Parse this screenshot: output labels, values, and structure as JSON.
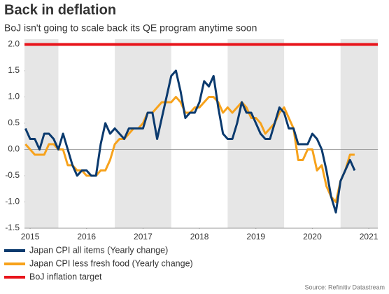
{
  "chart_data": {
    "type": "line",
    "title": "Back in deflation",
    "subtitle": "BoJ isn't going to scale back its QE program anytime soon",
    "source": "Source: Refinitiv Datastream",
    "x": [
      2015.417,
      2015.5,
      2015.583,
      2015.667,
      2015.75,
      2015.833,
      2015.917,
      2016.0,
      2016.083,
      2016.167,
      2016.25,
      2016.333,
      2016.417,
      2016.5,
      2016.583,
      2016.667,
      2016.75,
      2016.833,
      2016.917,
      2017.0,
      2017.083,
      2017.167,
      2017.25,
      2017.333,
      2017.417,
      2017.5,
      2017.583,
      2017.667,
      2017.75,
      2017.833,
      2017.917,
      2018.0,
      2018.083,
      2018.167,
      2018.25,
      2018.333,
      2018.417,
      2018.5,
      2018.583,
      2018.667,
      2018.75,
      2018.833,
      2018.917,
      2019.0,
      2019.083,
      2019.167,
      2019.25,
      2019.333,
      2019.417,
      2019.5,
      2019.583,
      2019.667,
      2019.75,
      2019.833,
      2019.917,
      2020.0,
      2020.083,
      2020.167,
      2020.25,
      2020.333,
      2020.417,
      2020.5,
      2020.583,
      2020.667,
      2020.75,
      2020.833,
      2020.917,
      2021.0,
      2021.083,
      2021.167,
      2021.25
    ],
    "series": [
      {
        "name": "Japan CPI all items (Yearly change)",
        "color": "#0b3a6e",
        "values": [
          0.4,
          0.2,
          0.2,
          0.0,
          0.3,
          0.3,
          0.2,
          0.0,
          0.3,
          0.0,
          -0.3,
          -0.5,
          -0.4,
          -0.4,
          -0.5,
          -0.5,
          0.1,
          0.5,
          0.3,
          0.4,
          0.3,
          0.2,
          0.4,
          0.4,
          0.4,
          0.4,
          0.7,
          0.7,
          0.2,
          0.6,
          1.0,
          1.4,
          1.5,
          1.1,
          0.6,
          0.7,
          0.7,
          0.9,
          1.3,
          1.2,
          1.4,
          0.8,
          0.3,
          0.2,
          0.2,
          0.5,
          0.9,
          0.7,
          0.7,
          0.5,
          0.3,
          0.2,
          0.2,
          0.5,
          0.8,
          0.7,
          0.4,
          0.4,
          0.1,
          0.1,
          0.1,
          0.3,
          0.2,
          0.0,
          -0.4,
          -0.9,
          -1.2,
          -0.6,
          -0.4,
          -0.2,
          -0.4
        ]
      },
      {
        "name": "Japan CPI less fresh food (Yearly change)",
        "color": "#f7a21b",
        "values": [
          0.1,
          0.0,
          -0.1,
          -0.1,
          -0.1,
          0.1,
          0.1,
          0.0,
          0.0,
          -0.3,
          -0.3,
          -0.4,
          -0.4,
          -0.5,
          -0.5,
          -0.5,
          -0.4,
          -0.4,
          -0.2,
          0.1,
          0.2,
          0.2,
          0.3,
          0.4,
          0.4,
          0.5,
          0.7,
          0.7,
          0.8,
          0.9,
          0.9,
          0.9,
          1.0,
          0.9,
          0.7,
          0.7,
          0.8,
          0.8,
          0.9,
          1.0,
          1.0,
          0.9,
          0.7,
          0.8,
          0.7,
          0.8,
          0.9,
          0.8,
          0.6,
          0.6,
          0.5,
          0.3,
          0.4,
          0.5,
          0.7,
          0.8,
          0.6,
          0.4,
          -0.2,
          -0.2,
          0.0,
          0.0,
          -0.4,
          -0.3,
          -0.7,
          -0.9,
          -1.0,
          -0.6,
          -0.4,
          -0.1,
          -0.1
        ]
      }
    ],
    "target": {
      "name": "BoJ inflation target",
      "color": "#e8141b",
      "value": 2.0
    },
    "xlim": [
      2015.4,
      2021.66
    ],
    "xticks": [
      {
        "value": 2015.5,
        "label": "2015"
      },
      {
        "value": 2016.5,
        "label": "2016"
      },
      {
        "value": 2017.5,
        "label": "2017"
      },
      {
        "value": 2018.5,
        "label": "2018"
      },
      {
        "value": 2019.5,
        "label": "2019"
      },
      {
        "value": 2020.5,
        "label": "2020"
      },
      {
        "value": 2021.5,
        "label": "2021"
      }
    ],
    "ylim": [
      -1.5,
      2.1
    ],
    "yticks": [
      {
        "value": 2.0,
        "label": "2.0"
      },
      {
        "value": 1.5,
        "label": "1.5"
      },
      {
        "value": 1.0,
        "label": "1.0"
      },
      {
        "value": 0.5,
        "label": "0.5"
      },
      {
        "value": 0.0,
        "label": "0.0"
      },
      {
        "value": -0.5,
        "label": "-0.5"
      },
      {
        "value": -1.0,
        "label": "-1.0"
      },
      {
        "value": -1.5,
        "label": "-1.5"
      }
    ]
  }
}
